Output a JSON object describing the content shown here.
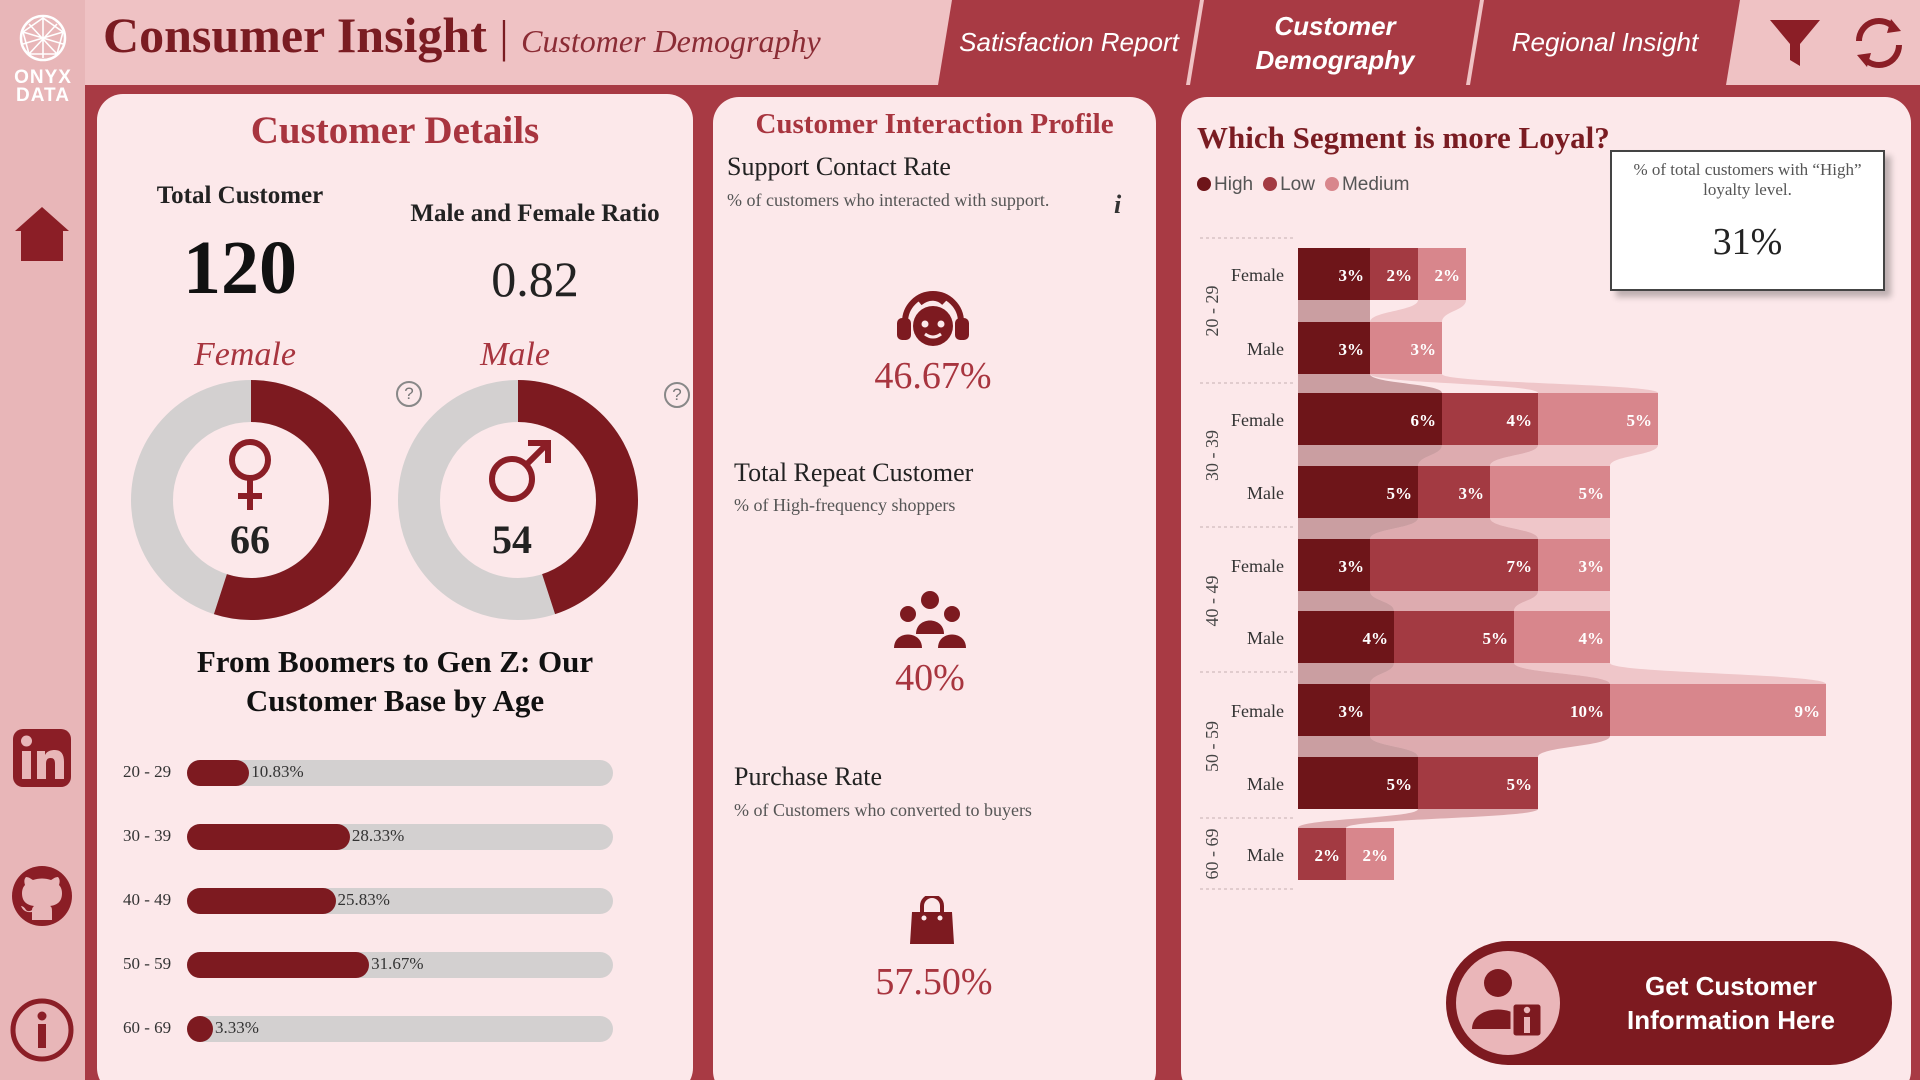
{
  "logo": {
    "line1": "ONYX",
    "line2": "DATA"
  },
  "header": {
    "title": "Consumer Insight",
    "separator": "|",
    "subtitle": "Customer Demography",
    "tabs": [
      {
        "label": "Satisfaction Report",
        "active": false
      },
      {
        "label": "Customer Demography",
        "active": true
      },
      {
        "label": "Regional Insight",
        "active": false
      }
    ],
    "icons": [
      "filter-icon",
      "refresh-icon"
    ]
  },
  "sidebar": {
    "icons": [
      "home-icon",
      "linkedin-icon",
      "github-icon",
      "info-icon"
    ]
  },
  "customer_details": {
    "title": "Customer Details",
    "total_label": "Total Customer",
    "total_value": "120",
    "ratio_label": "Male and Female Ratio",
    "ratio_value": "0.82",
    "female_label": "Female",
    "female_value": "66",
    "female_share": 0.55,
    "male_label": "Male",
    "male_value": "54",
    "male_share": 0.45,
    "help": "?"
  },
  "age_section": {
    "title_line1": "From Boomers to Gen Z: Our",
    "title_line2": "Customer Base by Age",
    "rows": [
      {
        "label": "20 - 29",
        "value": 10.83,
        "text": "10.83%"
      },
      {
        "label": "30 - 39",
        "value": 28.33,
        "text": "28.33%"
      },
      {
        "label": "40 - 49",
        "value": 25.83,
        "text": "25.83%"
      },
      {
        "label": "50 - 59",
        "value": 31.67,
        "text": "31.67%"
      },
      {
        "label": "60 - 69",
        "value": 3.33,
        "text": "3.33%"
      }
    ]
  },
  "interaction": {
    "title": "Customer Interaction Profile",
    "info": "i",
    "metrics": [
      {
        "label": "Support Contact Rate",
        "sub": "% of customers who interacted with support.",
        "value": 46.67,
        "text": "46.67%",
        "icon": "support-agent-icon"
      },
      {
        "label": "Total Repeat Customer",
        "sub": "% of High-frequency shoppers",
        "value": 40,
        "text": "40%",
        "icon": "group-icon"
      },
      {
        "label": "Purchase Rate",
        "sub": "% of Customers who converted to buyers",
        "value": 57.5,
        "text": "57.50%",
        "icon": "shopping-bag-icon"
      }
    ]
  },
  "loyalty": {
    "title": "Which Segment is more Loyal?",
    "kpi_label": "% of total customers with “High” loyalty level.",
    "kpi_value": "31%",
    "cta": "Get Customer Information Here"
  },
  "colors": {
    "high": "#6e1519",
    "low": "#a33a42",
    "medium": "#d8868c",
    "accent": "#a8353f",
    "track": "#d3d0d0"
  },
  "chart_data": {
    "type": "bar",
    "orientation": "horizontal-stacked",
    "title": "Which Segment is more Loyal?",
    "legend": [
      "High",
      "Low",
      "Medium"
    ],
    "legend_position": "top-left",
    "groups": [
      {
        "age": "20 - 29",
        "rows": [
          {
            "gender": "Female",
            "High": 3,
            "Low": 2,
            "Medium": 2
          },
          {
            "gender": "Male",
            "High": 3,
            "Low": 0,
            "Medium": 3
          }
        ]
      },
      {
        "age": "30 - 39",
        "rows": [
          {
            "gender": "Female",
            "High": 6,
            "Low": 4,
            "Medium": 5
          },
          {
            "gender": "Male",
            "High": 5,
            "Low": 3,
            "Medium": 5
          }
        ]
      },
      {
        "age": "40 - 49",
        "rows": [
          {
            "gender": "Female",
            "High": 3,
            "Low": 7,
            "Medium": 3
          },
          {
            "gender": "Male",
            "High": 4,
            "Low": 5,
            "Medium": 4
          }
        ]
      },
      {
        "age": "50 - 59",
        "rows": [
          {
            "gender": "Female",
            "High": 3,
            "Low": 10,
            "Medium": 9
          },
          {
            "gender": "Male",
            "High": 5,
            "Low": 5,
            "Medium": 0
          }
        ]
      },
      {
        "age": "60 - 69",
        "rows": [
          {
            "gender": "Male",
            "High": 0,
            "Low": 2,
            "Medium": 2
          }
        ]
      }
    ]
  }
}
